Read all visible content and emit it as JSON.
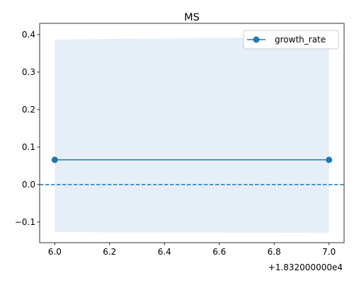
{
  "chart_data": {
    "type": "line",
    "title": "MS",
    "xlabel": "",
    "ylabel": "",
    "x_offset_label": "+1.832000000e4",
    "xlim": [
      5.945,
      7.055
    ],
    "ylim": [
      -0.155,
      0.43
    ],
    "x_ticks": [
      6.0,
      6.2,
      6.4,
      6.6,
      6.8,
      7.0
    ],
    "x_tick_labels": [
      "6.0",
      "6.2",
      "6.4",
      "6.6",
      "6.8",
      "7.0"
    ],
    "y_ticks": [
      -0.1,
      0.0,
      0.1,
      0.2,
      0.3,
      0.4
    ],
    "y_tick_labels": [
      "−0.1",
      "0.0",
      "0.1",
      "0.2",
      "0.3",
      "0.4"
    ],
    "series": [
      {
        "name": "growth_rate",
        "x": [
          6.0,
          7.0
        ],
        "y": [
          0.066,
          0.066
        ],
        "color": "#1f77b4",
        "marker": "circle"
      }
    ],
    "confidence_band": {
      "x": [
        6.0,
        7.0
      ],
      "upper": [
        0.387,
        0.394
      ],
      "lower": [
        -0.127,
        -0.129
      ],
      "color": "#e6eff7"
    },
    "reference_line": {
      "y": 0.0,
      "style": "dashed",
      "color": "#1f77b4"
    },
    "grid": false,
    "legend_position": "top-right"
  }
}
